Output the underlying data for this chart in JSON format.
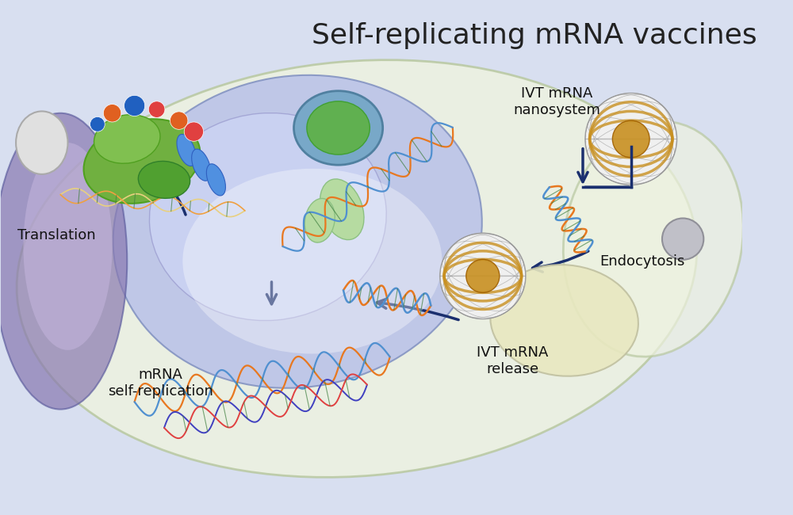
{
  "title": "Self-replicating mRNA vaccines",
  "title_fontsize": 26,
  "title_color": "#222222",
  "bg_color": "#d8dff0",
  "labels": {
    "translation": "Translation",
    "mrna_self": "mRNA\nself-replication",
    "ivt_release": "IVT mRNA\nrelease",
    "endocytosis": "Endocytosis",
    "ivt_nano": "IVT mRNA\nnanosystem"
  },
  "label_color": "#111111",
  "arrow_color": "#1a2f6e",
  "cell_outer_color": "#e8eedc",
  "cell_inner_color": "#c8d4f8",
  "nucleus_color": "#9aaccf",
  "endosome_color": "#e8e8c8",
  "dna_colors": [
    "#e87820",
    "#5090d0",
    "#40a040",
    "#e84040"
  ],
  "nanoparticle_outer": "#c8a030",
  "nanoparticle_inner": "#e0e0e0"
}
